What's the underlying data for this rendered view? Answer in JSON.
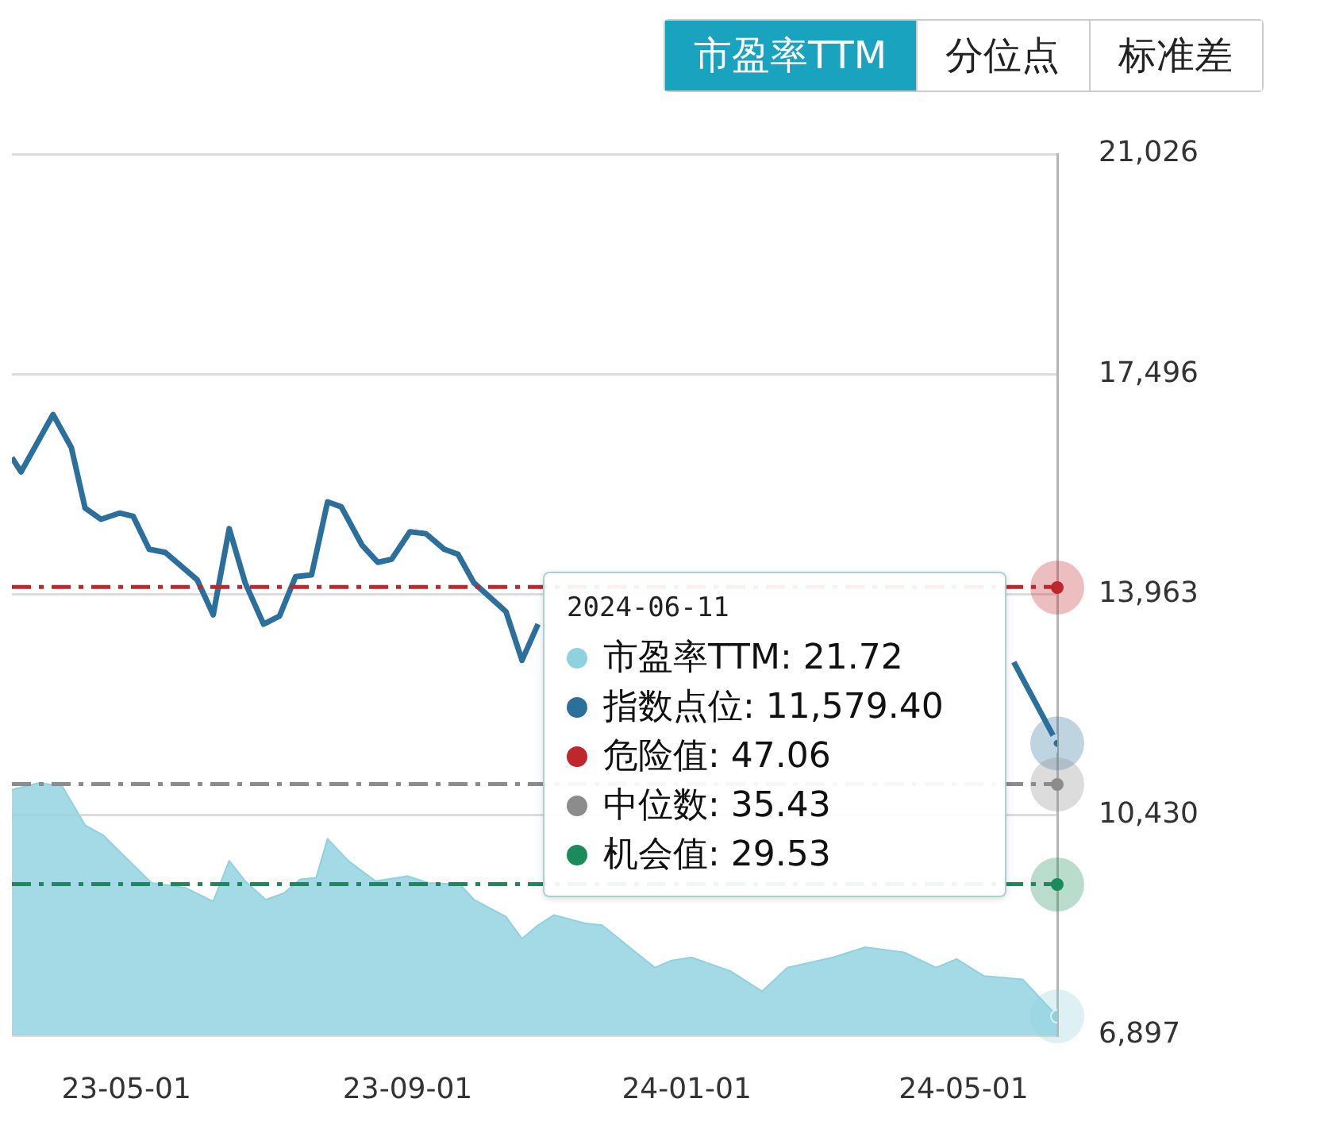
{
  "chart_data": {
    "type": "line",
    "xlim": [
      "2023-03-12",
      "2024-06-11"
    ],
    "xticks": [
      {
        "value": "2023-05-01",
        "label": "23-05-01"
      },
      {
        "value": "2023-09-01",
        "label": "23-09-01"
      },
      {
        "value": "2024-01-01",
        "label": "24-01-01"
      },
      {
        "value": "2024-05-01",
        "label": "24-05-01"
      }
    ],
    "ylim": [
      6897,
      21026
    ],
    "yticks": [
      {
        "value": 6897,
        "label": "6,897"
      },
      {
        "value": 10430,
        "label": "10,430"
      },
      {
        "value": 13963,
        "label": "13,963"
      },
      {
        "value": 17496,
        "label": "17,496"
      },
      {
        "value": 21026,
        "label": "21,026"
      }
    ],
    "y2lim": [
      20.6,
      72.6
    ],
    "grid": "y",
    "series": [
      {
        "name": "市盈率TTM",
        "type": "area",
        "axis": "y2",
        "color": "#8fd2df",
        "x": [
          "2023-03-12",
          "2023-03-24",
          "2023-04-03",
          "2023-04-13",
          "2023-04-21",
          "2023-05-12",
          "2023-05-27",
          "2023-06-08",
          "2023-06-15",
          "2023-06-22",
          "2023-07-01",
          "2023-07-09",
          "2023-07-16",
          "2023-07-23",
          "2023-07-28",
          "2023-08-06",
          "2023-08-18",
          "2023-09-01",
          "2023-09-10",
          "2023-09-24",
          "2023-09-30",
          "2023-10-14",
          "2023-10-21",
          "2023-10-28",
          "2023-11-04",
          "2023-11-18",
          "2023-11-25",
          "2023-12-18",
          "2023-12-25",
          "2024-01-03",
          "2024-01-20",
          "2024-02-03",
          "2024-02-14",
          "2024-03-05",
          "2024-03-19",
          "2024-04-05",
          "2024-04-19",
          "2024-04-28",
          "2024-05-10",
          "2024-05-27",
          "2024-06-11"
        ],
        "values": [
          35.1,
          35.5,
          35.3,
          33.0,
          32.4,
          29.6,
          29.3,
          28.5,
          30.9,
          29.7,
          28.6,
          29.0,
          29.8,
          29.9,
          32.2,
          30.9,
          29.7,
          30.0,
          29.6,
          29.5,
          28.6,
          27.6,
          26.3,
          27.1,
          27.7,
          27.2,
          27.1,
          24.6,
          25.0,
          25.2,
          24.4,
          23.2,
          24.6,
          25.2,
          25.8,
          25.5,
          24.6,
          25.1,
          24.1,
          23.9,
          21.72
        ]
      },
      {
        "name": "指数点位",
        "type": "line",
        "axis": "y",
        "color": "#2b6f9c",
        "x": [
          "2023-03-12",
          "2023-03-16",
          "2023-03-30",
          "2023-04-07",
          "2023-04-13",
          "2023-04-20",
          "2023-04-28",
          "2023-05-04",
          "2023-05-11",
          "2023-05-18",
          "2023-06-01",
          "2023-06-08",
          "2023-06-15",
          "2023-06-22",
          "2023-06-30",
          "2023-07-07",
          "2023-07-14",
          "2023-07-21",
          "2023-07-28",
          "2023-08-03",
          "2023-08-12",
          "2023-08-19",
          "2023-08-25",
          "2023-09-02",
          "2023-09-09",
          "2023-09-17",
          "2023-09-23",
          "2023-09-30",
          "2023-10-14",
          "2023-10-21",
          "2023-10-28",
          "2023-11-03",
          "2024-02-01",
          "2024-05-23",
          "2024-06-11"
        ],
        "values": [
          16160,
          15930,
          16850,
          16320,
          15350,
          15170,
          15270,
          15220,
          14690,
          14640,
          14200,
          13640,
          15020,
          14150,
          13490,
          13620,
          14250,
          14280,
          15450,
          15370,
          14760,
          14480,
          14530,
          14970,
          14940,
          14690,
          14610,
          14150,
          13690,
          12910,
          13490,
          null,
          null,
          12880,
          11579.4
        ]
      }
    ],
    "ref_lines": [
      {
        "axis": "y2",
        "value": 47.06,
        "label": "危险值: 47.06",
        "color": "#c0272d",
        "line_style": "dashed"
      },
      {
        "axis": "y2",
        "value": 35.43,
        "label": "中位数: 35.43",
        "color": "#8c8c8c",
        "line_style": "dashed"
      },
      {
        "axis": "y2",
        "value": 29.53,
        "label": "机会值: 29.53",
        "color": "#1a8c5b",
        "line_style": "dashed"
      }
    ],
    "legend": "center",
    "annotations": [
      "市盈率TTM",
      "分位点",
      "标准差",
      "2024-06-11",
      ": 21.72",
      ": 11,579.40"
    ]
  }
}
